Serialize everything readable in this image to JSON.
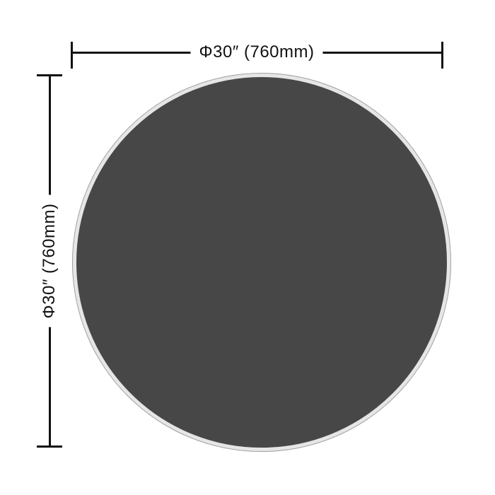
{
  "page": {
    "background": "#ffffff"
  },
  "diagram": {
    "type": "product-dimension-diagram",
    "shape": {
      "kind": "circle",
      "name": "round-tabletop",
      "fill_color": "#474747",
      "rim_inner_color": "#e6e6e6",
      "rim_outer_color": "#9e9e9e"
    },
    "line_color": "#111111",
    "dimensions": {
      "horizontal": {
        "label": "Φ30″ (760mm)"
      },
      "vertical": {
        "label": "Φ30″ (760mm)"
      }
    }
  }
}
